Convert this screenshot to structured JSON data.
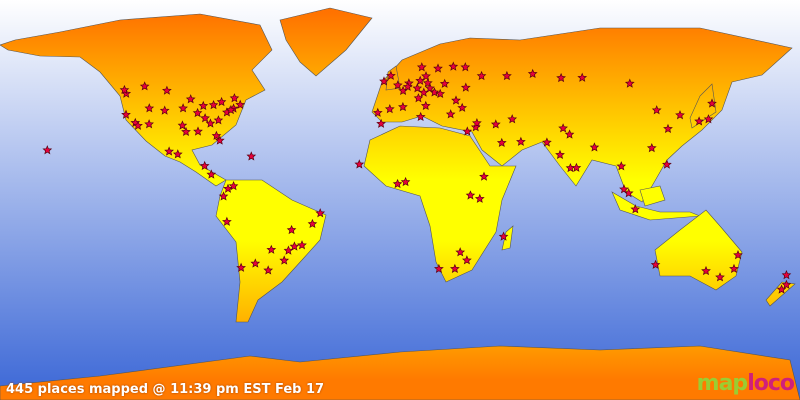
{
  "caption": "445 places mapped @ 11:39 pm EST Feb 17",
  "logo": {
    "part1": "map",
    "part2": "loco"
  },
  "colors": {
    "land_top": "#ff7a00",
    "land_mid": "#ffff00",
    "ocean_top": "#ffffff",
    "ocean_bottom": "#3a66d6",
    "marker": "#e8003c",
    "marker_stroke": "#5a0010"
  },
  "markers": [
    [
      -122.4,
      37.8
    ],
    [
      -118.2,
      34
    ],
    [
      -122.3,
      47.6
    ],
    [
      -117,
      32.7
    ],
    [
      -112,
      33.4
    ],
    [
      -105,
      39.7
    ],
    [
      -97,
      32.8
    ],
    [
      -95.4,
      29.8
    ],
    [
      -90,
      30
    ],
    [
      -87.6,
      41.9
    ],
    [
      -84.4,
      33.7
    ],
    [
      -80.2,
      25.8
    ],
    [
      -81.7,
      28
    ],
    [
      -77,
      38.9
    ],
    [
      -74,
      40.7
    ],
    [
      -71,
      42.4
    ],
    [
      -75.2,
      40
    ],
    [
      -79.4,
      43.7
    ],
    [
      -73.6,
      45.5
    ],
    [
      -83,
      42.3
    ],
    [
      -93.3,
      45
    ],
    [
      -90.2,
      38.6
    ],
    [
      -86.8,
      36.2
    ],
    [
      -80.8,
      35.2
    ],
    [
      -96.7,
      40.8
    ],
    [
      -104,
      49
    ],
    [
      -114,
      51
    ],
    [
      -123.1,
      49.3
    ],
    [
      -111.9,
      40.8
    ],
    [
      -99.1,
      19.4
    ],
    [
      -103,
      20.7
    ],
    [
      -157.8,
      21.3
    ],
    [
      -87,
      14
    ],
    [
      -84,
      10
    ],
    [
      -66,
      18.4
    ],
    [
      -76.5,
      3.4
    ],
    [
      -74,
      4.6
    ],
    [
      -78.5,
      -0.2
    ],
    [
      -77,
      -12
    ],
    [
      -70.6,
      -33.4
    ],
    [
      -58.4,
      -34.6
    ],
    [
      -64.2,
      -31.4
    ],
    [
      -57,
      -25
    ],
    [
      -47.9,
      -15.8
    ],
    [
      -43.2,
      -22.9
    ],
    [
      -46.6,
      -23.5
    ],
    [
      -49.3,
      -25.4
    ],
    [
      -51.2,
      -30
    ],
    [
      -38.5,
      -13
    ],
    [
      -35,
      -8
    ],
    [
      -0.1,
      51.5
    ],
    [
      -3.2,
      55.9
    ],
    [
      -6.3,
      53.3
    ],
    [
      2.3,
      48.9
    ],
    [
      4.9,
      52.4
    ],
    [
      4.4,
      50.8
    ],
    [
      8.7,
      50.1
    ],
    [
      13.4,
      52.5
    ],
    [
      10,
      53.6
    ],
    [
      11.6,
      48.1
    ],
    [
      16.4,
      48.2
    ],
    [
      14.4,
      50.1
    ],
    [
      21,
      52.2
    ],
    [
      19,
      47.5
    ],
    [
      12.5,
      41.9
    ],
    [
      9.2,
      45.5
    ],
    [
      -3.7,
      40.4
    ],
    [
      2.2,
      41.4
    ],
    [
      -9.1,
      38.7
    ],
    [
      23.7,
      38
    ],
    [
      28.9,
      41
    ],
    [
      26.1,
      44.4
    ],
    [
      30.5,
      50.4
    ],
    [
      37.6,
      55.8
    ],
    [
      30.3,
      59.9
    ],
    [
      18,
      59.3
    ],
    [
      10.7,
      59.9
    ],
    [
      12.6,
      55.7
    ],
    [
      24.9,
      60.2
    ],
    [
      35,
      32
    ],
    [
      35.5,
      33.9
    ],
    [
      44,
      33.3
    ],
    [
      51.4,
      35.7
    ],
    [
      55.3,
      25.2
    ],
    [
      46.7,
      24.7
    ],
    [
      31.2,
      30
    ],
    [
      72.9,
      19.1
    ],
    [
      77.2,
      28.6
    ],
    [
      77.6,
      13
    ],
    [
      80.3,
      13.1
    ],
    [
      88.4,
      22.6
    ],
    [
      67,
      24.9
    ],
    [
      74.3,
      31.5
    ],
    [
      100.5,
      13.8
    ],
    [
      103.8,
      1.3
    ],
    [
      101.7,
      3.1
    ],
    [
      106.8,
      -6.2
    ],
    [
      121,
      14.6
    ],
    [
      114.2,
      22.3
    ],
    [
      121.5,
      31.2
    ],
    [
      116.4,
      39.9
    ],
    [
      126.9,
      37.6
    ],
    [
      139.7,
      35.7
    ],
    [
      135.5,
      34.7
    ],
    [
      141.3,
      43
    ],
    [
      82.9,
      55
    ],
    [
      60.6,
      56.8
    ],
    [
      49,
      55.8
    ],
    [
      104.3,
      52.3
    ],
    [
      73.4,
      54.9
    ],
    [
      151.2,
      -33.9
    ],
    [
      144.9,
      -37.8
    ],
    [
      153,
      -27.5
    ],
    [
      138.6,
      -34.9
    ],
    [
      115.9,
      -32
    ],
    [
      174.8,
      -36.8
    ],
    [
      174.8,
      -41.3
    ],
    [
      172.6,
      -43.5
    ],
    [
      28,
      -26.2
    ],
    [
      18.4,
      -33.9
    ],
    [
      31,
      -29.9
    ],
    [
      25.6,
      -33.9
    ],
    [
      36.8,
      -1.3
    ],
    [
      32.6,
      0.3
    ],
    [
      3.4,
      6.5
    ],
    [
      -0.2,
      5.6
    ],
    [
      -17.4,
      14.7
    ],
    [
      47.5,
      -18.9
    ],
    [
      -7.6,
      33.6
    ],
    [
      10.2,
      36.8
    ],
    [
      38.7,
      9
    ]
  ]
}
